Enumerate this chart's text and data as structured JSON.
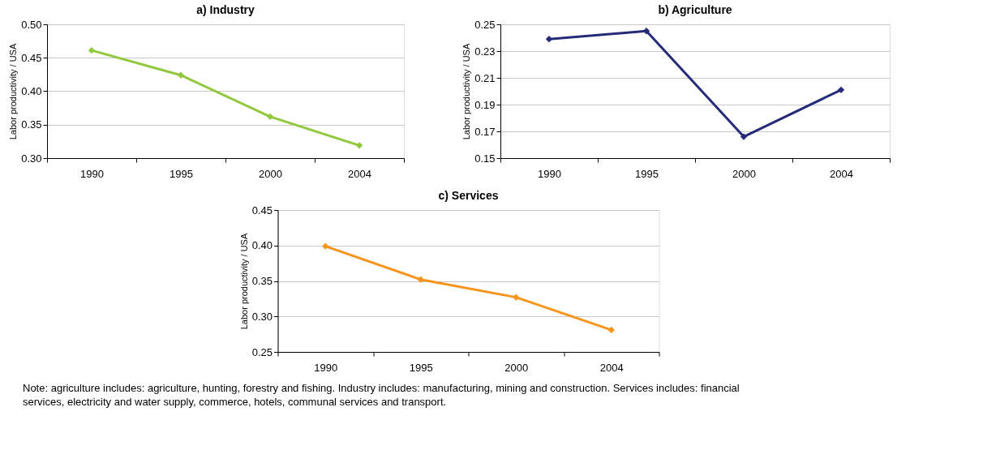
{
  "chart_data": [
    {
      "type": "line",
      "title": "a) Industry",
      "ylabel": "Labor productivity / USA",
      "categories": [
        "1990",
        "1995",
        "2000",
        "2004"
      ],
      "series": [
        {
          "color": "#92c83e",
          "values": [
            0.461,
            0.424,
            0.362,
            0.319
          ]
        }
      ],
      "ylim": [
        0.3,
        0.5
      ],
      "yticks": [
        {
          "value": 0.3,
          "label": "0.30"
        },
        {
          "value": 0.35,
          "label": "0.35"
        },
        {
          "value": 0.4,
          "label": "0.40"
        },
        {
          "value": 0.45,
          "label": "0.45"
        },
        {
          "value": 0.5,
          "label": "0.50"
        }
      ],
      "grid": "y",
      "marker": "diamond",
      "line_style": "solid"
    },
    {
      "type": "line",
      "title": "b) Agriculture",
      "ylabel": "Labor productivity / USA",
      "categories": [
        "1990",
        "1995",
        "2000",
        "2004"
      ],
      "series": [
        {
          "color": "#252b78",
          "values": [
            0.239,
            0.245,
            0.166,
            0.201
          ]
        }
      ],
      "ylim": [
        0.15,
        0.25
      ],
      "yticks": [
        0.15,
        0.17,
        0.19,
        0.21,
        0.23,
        0.25
      ],
      "grid": "y",
      "marker": "diamond",
      "line_style": "solid"
    },
    {
      "type": "line",
      "title": "c) Services",
      "ylabel": "Labor productivity / USA",
      "categories": [
        "1990",
        "1995",
        "2000",
        "2004"
      ],
      "series": [
        {
          "color": "#f7941d",
          "values": [
            0.399,
            0.352,
            0.327,
            0.281
          ]
        }
      ],
      "ylim": [
        0.25,
        0.45
      ],
      "yticks": [
        {
          "value": 0.25,
          "label": "0.25"
        },
        {
          "value": 0.3,
          "label": "0.30"
        },
        {
          "value": 0.35,
          "label": "0.35"
        },
        {
          "value": 0.4,
          "label": "0.40"
        },
        {
          "value": 0.45,
          "label": "0.45"
        }
      ],
      "grid": "y",
      "marker": "diamond",
      "line_style": "solid",
      "annotations": [
        "Note: agriculture includes: agriculture, hunting, forestry and fishing. Industry includes: manufacturing, mining and construction. Services includes: financial services, electricity and water supply, commerce, hotels, communal services and transport."
      ]
    }
  ]
}
